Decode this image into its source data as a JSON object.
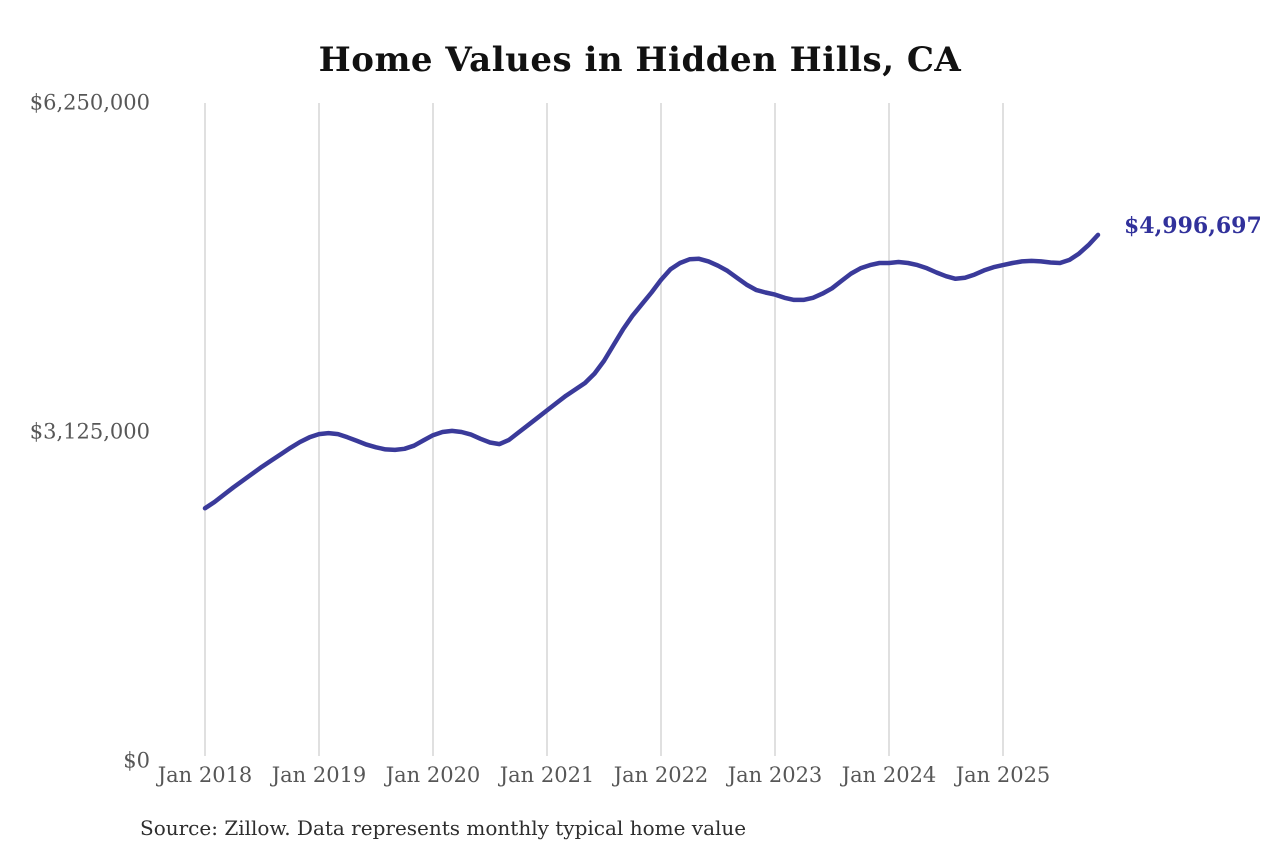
{
  "title": "Home Values in Hidden Hills, CA",
  "end_label": "$4,996,697",
  "source_note": "Source: Zillow. Data represents monthly typical home value",
  "colors": {
    "line": "#3a3a9a",
    "end_label": "#31319b",
    "gridline": "#cbcbcb",
    "tick_text": "#575757",
    "title_text": "#111111",
    "source_text": "#2e2e2e",
    "background": "#ffffff"
  },
  "y_axis": {
    "ticks": [
      {
        "label": "$0",
        "value": 0
      },
      {
        "label": "$3,125,000",
        "value": 3125000
      },
      {
        "label": "$6,250,000",
        "value": 6250000
      }
    ]
  },
  "x_axis": {
    "ticks": [
      "Jan 2018",
      "Jan 2019",
      "Jan 2020",
      "Jan 2021",
      "Jan 2022",
      "Jan 2023",
      "Jan 2024",
      "Jan 2025"
    ]
  },
  "chart_data": {
    "type": "line",
    "title": "Home Values in Hidden Hills, CA",
    "xlabel": "",
    "ylabel": "",
    "ylim": [
      0,
      6250000
    ],
    "grid": "vertical-only",
    "legend": "none",
    "final_value": 4996697,
    "final_value_label": "$4,996,697",
    "x": [
      "2018-01",
      "2018-02",
      "2018-03",
      "2018-04",
      "2018-05",
      "2018-06",
      "2018-07",
      "2018-08",
      "2018-09",
      "2018-10",
      "2018-11",
      "2018-12",
      "2019-01",
      "2019-02",
      "2019-03",
      "2019-04",
      "2019-05",
      "2019-06",
      "2019-07",
      "2019-08",
      "2019-09",
      "2019-10",
      "2019-11",
      "2019-12",
      "2020-01",
      "2020-02",
      "2020-03",
      "2020-04",
      "2020-05",
      "2020-06",
      "2020-07",
      "2020-08",
      "2020-09",
      "2020-10",
      "2020-11",
      "2020-12",
      "2021-01",
      "2021-02",
      "2021-03",
      "2021-04",
      "2021-05",
      "2021-06",
      "2021-07",
      "2021-08",
      "2021-09",
      "2021-10",
      "2021-11",
      "2021-12",
      "2022-01",
      "2022-02",
      "2022-03",
      "2022-04",
      "2022-05",
      "2022-06",
      "2022-07",
      "2022-08",
      "2022-09",
      "2022-10",
      "2022-11",
      "2022-12",
      "2023-01",
      "2023-02",
      "2023-03",
      "2023-04",
      "2023-05",
      "2023-06",
      "2023-07",
      "2023-08",
      "2023-09",
      "2023-10",
      "2023-11",
      "2023-12",
      "2024-01",
      "2024-02",
      "2024-03",
      "2024-04",
      "2024-05",
      "2024-06",
      "2024-07",
      "2024-08",
      "2024-09",
      "2024-10",
      "2024-11",
      "2024-12",
      "2025-01",
      "2025-02",
      "2025-03",
      "2025-04",
      "2025-05",
      "2025-06",
      "2025-07",
      "2025-08",
      "2025-09",
      "2025-10",
      "2025-11"
    ],
    "values": [
      2400000,
      2460000,
      2530000,
      2600000,
      2665000,
      2730000,
      2795000,
      2855000,
      2915000,
      2975000,
      3030000,
      3075000,
      3105000,
      3115000,
      3105000,
      3075000,
      3040000,
      3005000,
      2980000,
      2960000,
      2955000,
      2965000,
      2995000,
      3045000,
      3095000,
      3125000,
      3135000,
      3125000,
      3100000,
      3060000,
      3025000,
      3010000,
      3050000,
      3120000,
      3190000,
      3260000,
      3330000,
      3400000,
      3470000,
      3530000,
      3590000,
      3680000,
      3800000,
      3950000,
      4100000,
      4230000,
      4340000,
      4450000,
      4570000,
      4670000,
      4730000,
      4765000,
      4770000,
      4745000,
      4705000,
      4655000,
      4590000,
      4525000,
      4475000,
      4450000,
      4430000,
      4400000,
      4380000,
      4380000,
      4400000,
      4440000,
      4490000,
      4560000,
      4630000,
      4680000,
      4710000,
      4730000,
      4730000,
      4740000,
      4730000,
      4710000,
      4680000,
      4640000,
      4605000,
      4580000,
      4590000,
      4620000,
      4660000,
      4690000,
      4710000,
      4730000,
      4745000,
      4750000,
      4745000,
      4735000,
      4730000,
      4760000,
      4820000,
      4900000,
      4996697
    ]
  }
}
